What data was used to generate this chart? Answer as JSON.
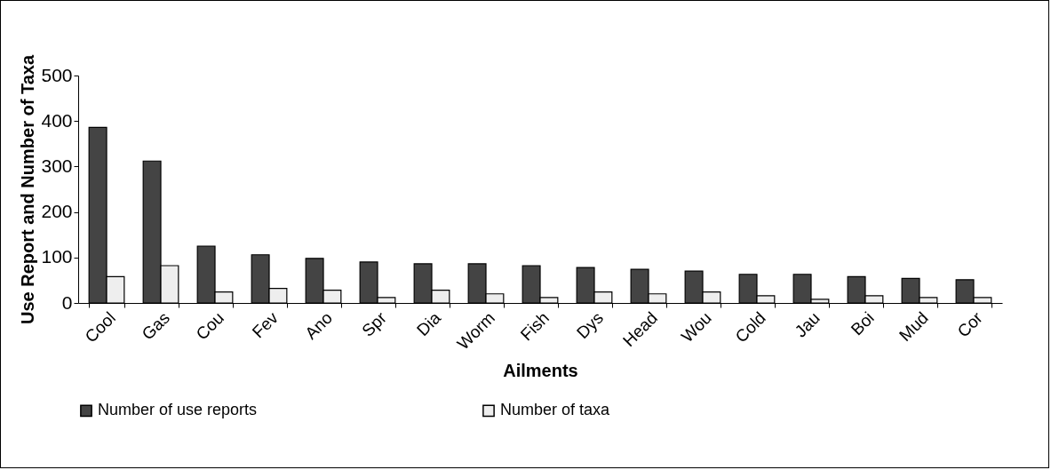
{
  "chart_data": {
    "type": "bar",
    "xlabel": "Ailments",
    "ylabel": "Use Report and Number of Taxa",
    "categories": [
      "Cool",
      "Gas",
      "Cou",
      "Fev",
      "Ano",
      "Spr",
      "Dia",
      "Worm",
      "Fish",
      "Dys",
      "Head",
      "Wou",
      "Cold",
      "Jau",
      "Boi",
      "Mud",
      "Cor"
    ],
    "series": [
      {
        "name": "Number of use reports",
        "color": "#444444",
        "values": [
          386,
          312,
          125,
          106,
          98,
          90,
          86,
          86,
          82,
          78,
          74,
          70,
          63,
          63,
          58,
          54,
          51
        ]
      },
      {
        "name": "Number of taxa",
        "color": "#eeeeee",
        "values": [
          58,
          82,
          24,
          32,
          28,
          12,
          28,
          20,
          12,
          24,
          20,
          24,
          16,
          8,
          16,
          12,
          12
        ]
      }
    ],
    "ylim": [
      0,
      500
    ],
    "yticks": [
      0,
      100,
      200,
      300,
      400,
      500
    ],
    "grid": false,
    "legend": "bottom"
  }
}
